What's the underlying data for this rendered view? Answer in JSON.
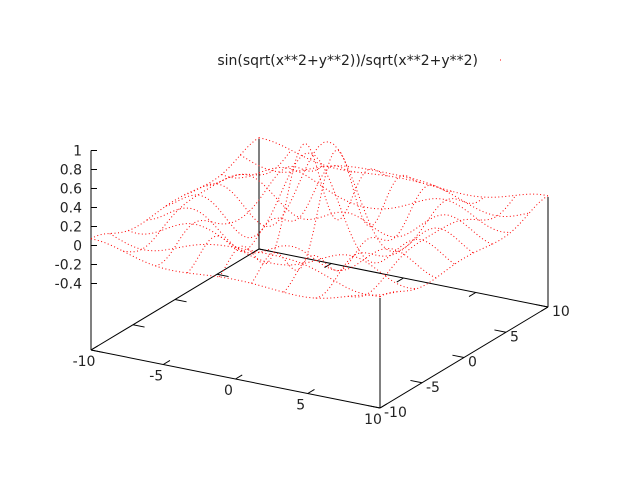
{
  "chart_data": {
    "type": "surface",
    "function": "sin(sqrt(x**2+y**2))/sqrt(x**2+y**2)",
    "legend": {
      "label": "sin(sqrt(x**2+y**2))/sqrt(x**2+y**2)",
      "placement": "top-right",
      "line_style": "dotted"
    },
    "xlim": [
      -10,
      10
    ],
    "ylim": [
      -10,
      10
    ],
    "zlim": [
      -0.4,
      1
    ],
    "xticks": [
      "-10",
      "-5",
      "0",
      "5",
      "10"
    ],
    "yticks": [
      "-10",
      "-5",
      "0",
      "5",
      "10"
    ],
    "zticks": [
      "1",
      "0.8",
      "0.6",
      "0.4",
      "0.2",
      "0",
      "-0.2",
      "-0.4"
    ],
    "isosamples": 10,
    "grid": false,
    "series_color": "#ff0000"
  }
}
